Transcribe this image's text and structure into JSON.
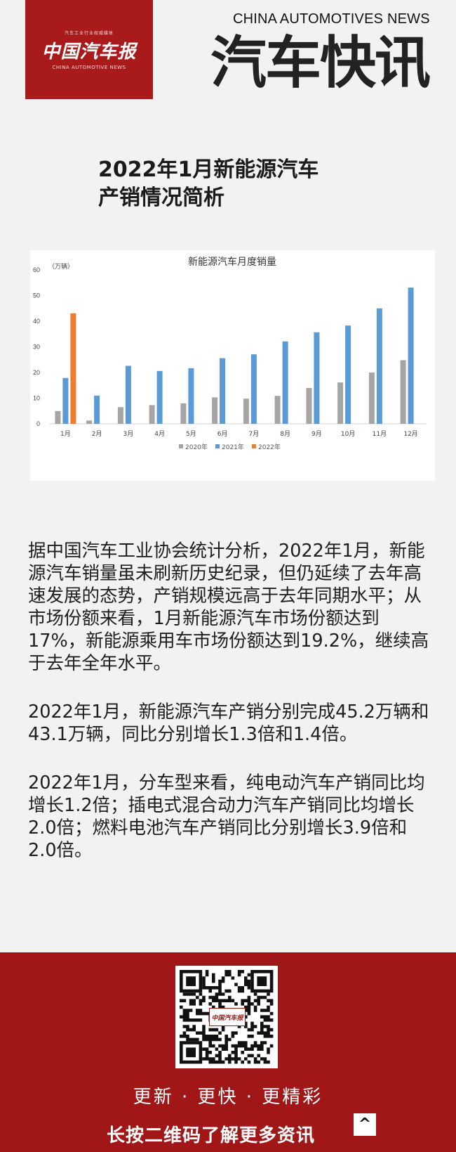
{
  "header": {
    "logo_tagline": "汽车工业行业权威媒体",
    "logo_text": "中国汽车报",
    "logo_sub": "CHINA AUTOMOTIVE NEWS",
    "brand_en": "CHINA AUTOMOTIVES NEWS",
    "brand_cn": "汽车快讯"
  },
  "headline": {
    "line1": "2022年1月新能源汽车",
    "line2": "产销情况简析"
  },
  "chart_data": {
    "type": "bar",
    "title": "新能源汽车月度销量",
    "unit_label": "（万辆）",
    "categories": [
      "1月",
      "2月",
      "3月",
      "4月",
      "5月",
      "6月",
      "7月",
      "8月",
      "9月",
      "10月",
      "11月",
      "12月"
    ],
    "ylim": [
      0,
      60
    ],
    "yticks": [
      0,
      10,
      20,
      30,
      40,
      50,
      60
    ],
    "series": [
      {
        "name": "2020年",
        "color": "#a5a5a5",
        "values": [
          5.0,
          1.3,
          6.5,
          7.3,
          8.0,
          10.3,
          9.8,
          10.9,
          14.0,
          16.1,
          20.0,
          24.8
        ]
      },
      {
        "name": "2021年",
        "color": "#5b9bd5",
        "values": [
          17.9,
          11.0,
          22.6,
          20.6,
          21.7,
          25.6,
          27.1,
          32.1,
          35.7,
          38.3,
          45.0,
          53.1
        ]
      },
      {
        "name": "2022年",
        "color": "#ed7d31",
        "values": [
          43.1,
          null,
          null,
          null,
          null,
          null,
          null,
          null,
          null,
          null,
          null,
          null
        ]
      }
    ],
    "legend_position": "bottom",
    "grid": false
  },
  "article": {
    "p1": "据中国汽车工业协会统计分析，2022年1月，新能源汽车销量虽未刷新历史纪录，但仍延续了去年高速发展的态势，产销规模远高于去年同期水平；从市场份额来看，1月新能源汽车市场份额达到17%，新能源乘用车市场份额达到19.2%，继续高于去年全年水平。",
    "p2": "2022年1月，新能源汽车产销分别完成45.2万辆和43.1万辆，同比分别增长1.3倍和1.4倍。",
    "p3": "2022年1月，分车型来看，纯电动汽车产销同比均增长1.2倍；插电式混合动力汽车产销同比均增长2.0倍；燃料电池汽车产销同比分别增长3.9倍和2.0倍。"
  },
  "footer": {
    "qr_badge": "中国汽车报",
    "slogan": "更新 · 更快 · 更精彩",
    "cta": "长按二维码了解更多资讯",
    "up_icon": "^"
  }
}
